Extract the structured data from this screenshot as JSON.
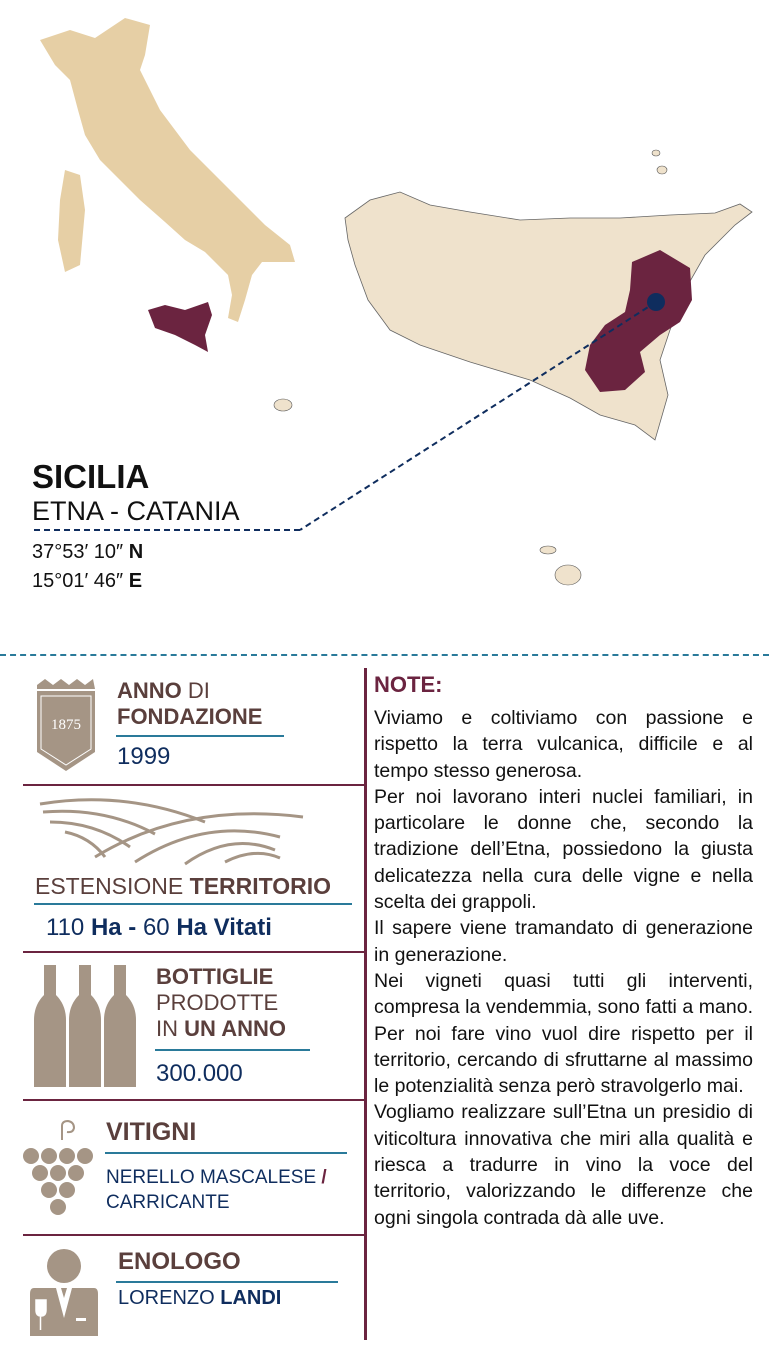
{
  "location": {
    "region": "SICILIA",
    "area": "ETNA - CATANIA",
    "lat_value": "37°53′ 10″",
    "lat_dir": "N",
    "lon_value": "15°01′ 46″",
    "lon_dir": "E"
  },
  "colors": {
    "maroon": "#6b2440",
    "navy": "#0f2d5e",
    "brown": "#5a3f3c",
    "taupe": "#a59585",
    "teal": "#2a7a9a",
    "italy": "#e6cfa5",
    "sicily": "#efe2cc"
  },
  "founding": {
    "badge_year": "1875",
    "label_bold": "ANNO",
    "label_rest": "DI",
    "label_line2": "FONDAZIONE",
    "value": "1999"
  },
  "territory": {
    "label_light": "ESTENSIONE",
    "label_bold": "TERRITORIO",
    "v1": "110",
    "u1": "Ha -",
    "v2": "60",
    "u2": "Ha Vitati"
  },
  "bottles": {
    "line1": "BOTTIGLIE",
    "line2": "PRODOTTE",
    "line3_light": "IN",
    "line3_bold": "UN ANNO",
    "value": "300.000"
  },
  "grapes": {
    "label": "VITIGNI",
    "value1": "NERELLO MASCALESE",
    "slash": "/",
    "value2": "CARRICANTE"
  },
  "oenologist": {
    "label": "ENOLOGO",
    "first": "LORENZO",
    "last": "LANDI"
  },
  "note": {
    "title": "NOTE:",
    "paragraphs": [
      "Viviamo e coltiviamo con passione e rispetto la terra vulcanica, difficile e al tempo stesso generosa.",
      "Per noi lavorano interi nuclei familiari, in particolare le donne che, secondo la tradizione dell’Etna, possiedono la giusta delicatezza nella cura delle vigne e nella scelta dei grappoli.",
      "Il sapere viene tramandato di generazione in generazione.",
      "Nei vigneti quasi tutti gli interventi, compresa la vendemmia, sono fatti a mano. Per noi fare vino vuol dire rispetto per il territorio, cercando di sfruttarne al massimo le potenzialità senza però stravolgerlo mai.",
      "Vogliamo realizzare sull’Etna un presidio di viticoltura innovativa che miri alla qualità e riesca a tradurre in vino la voce del territorio, valorizzando le differenze che ogni singola contrada dà alle uve."
    ]
  }
}
